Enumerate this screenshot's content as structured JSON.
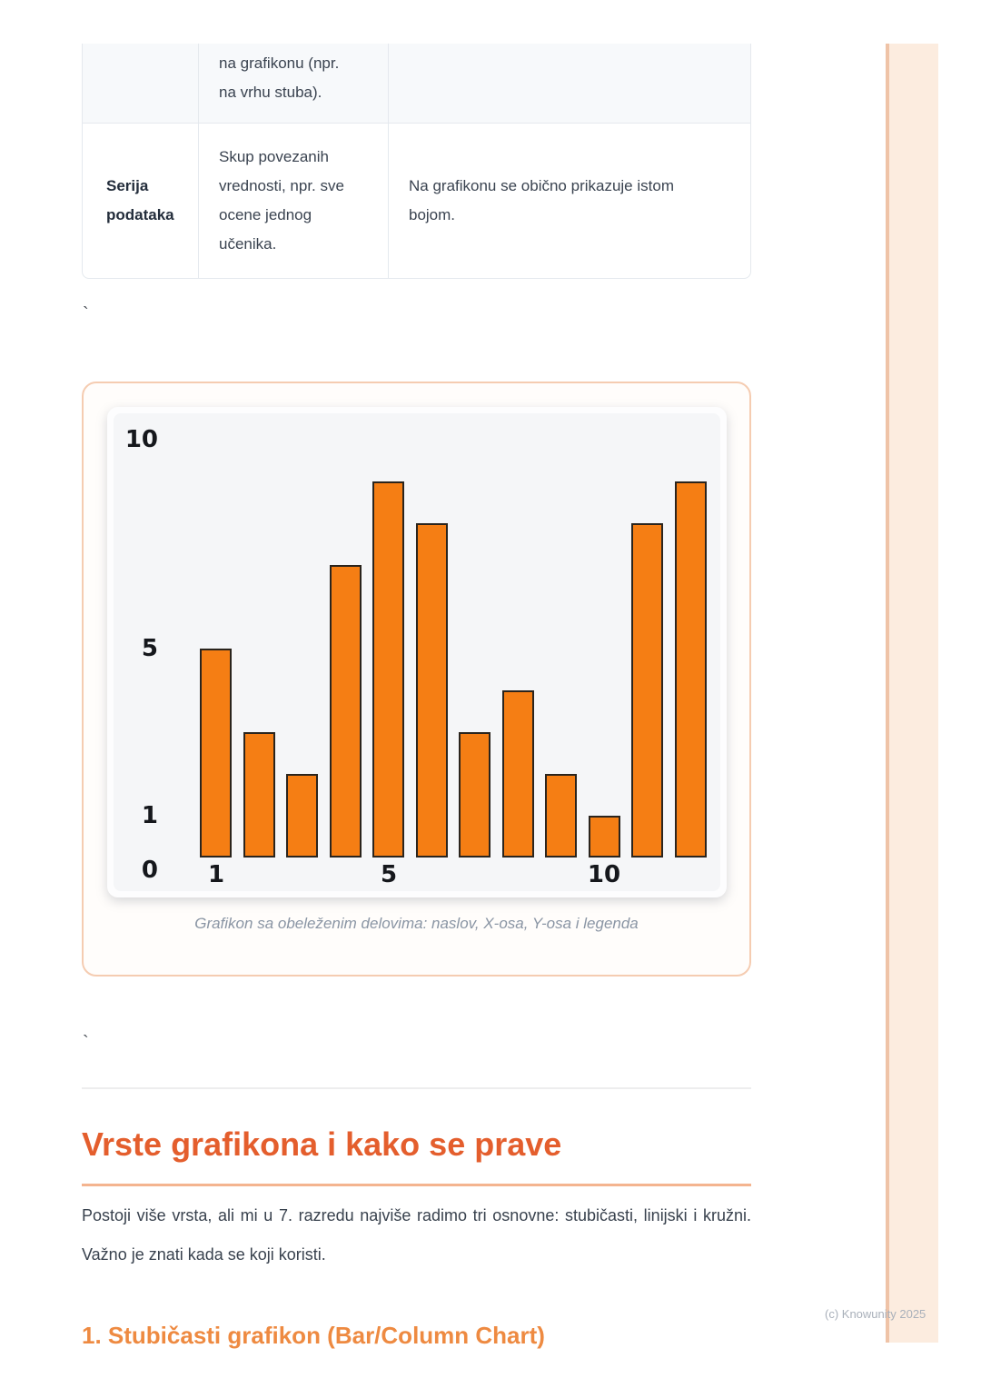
{
  "table": {
    "rows": [
      {
        "term": "",
        "definition": "na grafikonu (npr.\nna vrhu stuba).",
        "note": ""
      },
      {
        "term": "Serija\npodataka",
        "definition": "Skup povezanih\nvrednosti, npr. sve\nocene jednog\nučenika.",
        "note": "Na grafikonu se obično prikazuje istom\nbojom."
      }
    ]
  },
  "stray_marks": {
    "tick_top": "`",
    "tick_bottom": "`"
  },
  "figure": {
    "caption": "Grafikon sa obeleženim delovima: naslov, X-osa, Y-osa i legenda"
  },
  "chart_data": {
    "type": "bar",
    "x": [
      1,
      2,
      3,
      4,
      5,
      6,
      7,
      8,
      9,
      10,
      11,
      12
    ],
    "values": [
      5,
      3,
      2,
      7,
      9,
      8,
      3,
      4,
      2,
      1,
      8,
      9
    ],
    "y_ticks": [
      {
        "label": "10",
        "value": 10
      },
      {
        "label": "5",
        "value": 5
      },
      {
        "label": "1",
        "value": 1
      },
      {
        "label": "0",
        "value": 0
      }
    ],
    "x_ticks": [
      {
        "label": "1",
        "bar_index": 0
      },
      {
        "label": "5",
        "bar_index": 4
      },
      {
        "label": "10",
        "bar_index": 9
      }
    ],
    "ylim": [
      0,
      10.8
    ],
    "title": "",
    "xlabel": "",
    "ylabel": "",
    "grid": false,
    "legend_position": "none",
    "bar_color": "#f57e14",
    "bar_edge_color": "#2a241d",
    "style": "xkcd-hand-drawn"
  },
  "section": {
    "heading": "Vrste grafikona i kako se prave",
    "paragraph": "Postoji više vrsta, ali mi u 7. razredu najviše radimo tri osnovne: stubičasti, linijski i kružni. Važno je znati kada se koji koristi.",
    "subheading": "1. Stubičasti grafikon (Bar/Column Chart)"
  },
  "footer": {
    "copyright": "(c) Knowunity 2025"
  },
  "colors": {
    "accent_heading": "#e45e2d",
    "accent_subheading": "#ee8a41",
    "heading_underline": "#f4b48f",
    "figure_border": "#f5ccb1",
    "edge_stripe_fill": "#fcecdf",
    "edge_stripe_border": "#efc3a7",
    "table_border": "#e5e9ee",
    "table_row1_bg": "#f7f9fb",
    "body_text": "#39424e",
    "caption_text": "#8a95a4",
    "bar_fill": "#f57e14"
  }
}
